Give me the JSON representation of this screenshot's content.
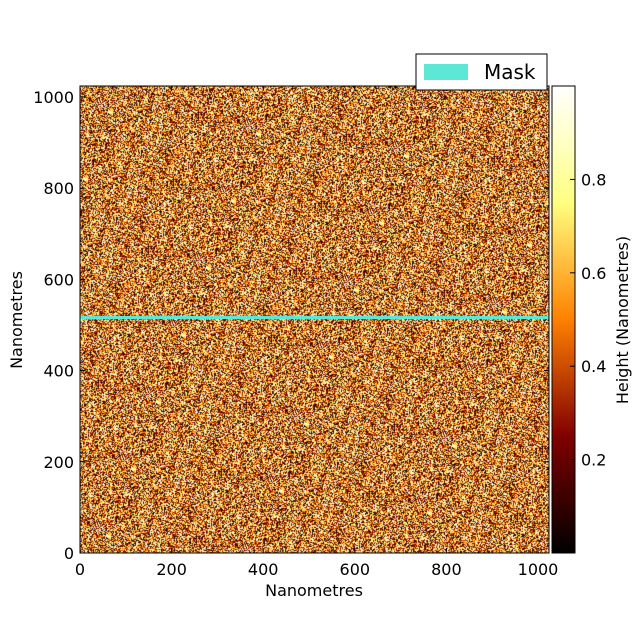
{
  "chart_data": {
    "type": "heatmap",
    "xlabel": "Nanometres",
    "ylabel": "Nanometres",
    "xlim": [
      0,
      1024
    ],
    "ylim": [
      0,
      1024
    ],
    "x_ticks": [
      0,
      200,
      400,
      600,
      800,
      1000
    ],
    "y_ticks": [
      0,
      200,
      400,
      600,
      800,
      1000
    ],
    "grid": false,
    "colormap": "afmhot",
    "colorbar": {
      "label": "Height (Nanometres)",
      "range": [
        0,
        1
      ],
      "ticks": [
        0.2,
        0.4,
        0.6,
        0.8
      ]
    },
    "mask": {
      "label": "Mask",
      "color": "#5ce8d4",
      "y_range": [
        513,
        520
      ]
    },
    "legend": {
      "placement": "top-right",
      "entries": [
        "Mask"
      ]
    }
  }
}
